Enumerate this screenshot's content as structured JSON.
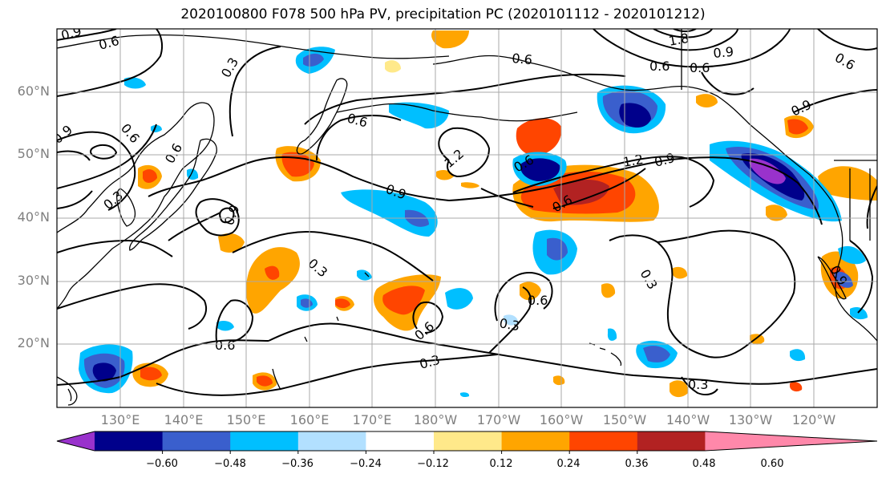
{
  "title": "2020100800 F078 500 hPa PV, precipitation PC (2020101112 - 2020101212)",
  "lat_labels": [
    "60°N",
    "50°N",
    "40°N",
    "30°N",
    "20°N"
  ],
  "lon_labels": [
    "130°E",
    "140°E",
    "150°E",
    "160°E",
    "170°E",
    "180°W",
    "170°W",
    "160°W",
    "150°W",
    "140°W",
    "130°W",
    "120°W"
  ],
  "colorbar": {
    "ticks": [
      "−0.60",
      "−0.48",
      "−0.36",
      "−0.24",
      "−0.12",
      "0.12",
      "0.24",
      "0.36",
      "0.48",
      "0.60"
    ],
    "colors": [
      "#9932CC",
      "#00008B",
      "#3A5FCD",
      "#00BFFF",
      "#B2E0FF",
      "#FFFFFF",
      "#FFE98A",
      "#FFA500",
      "#FF4500",
      "#B22222",
      "#FF88AA"
    ]
  },
  "contour_labels": [
    "0.9",
    "0.6",
    "0.3",
    "0.6",
    "0.6",
    "0.9",
    "0.6",
    "0.3",
    "0.9",
    "0.6",
    "1.2",
    "0.9",
    "0.6",
    "1.2",
    "0.9",
    "0.6",
    "0.6",
    "0.9",
    "0.3",
    "0.6",
    "0.3",
    "0.6",
    "0.6",
    "0.3",
    "0.3",
    "0.3",
    "0.6",
    "1.8",
    "0.6",
    "0.9",
    "0.9"
  ]
}
